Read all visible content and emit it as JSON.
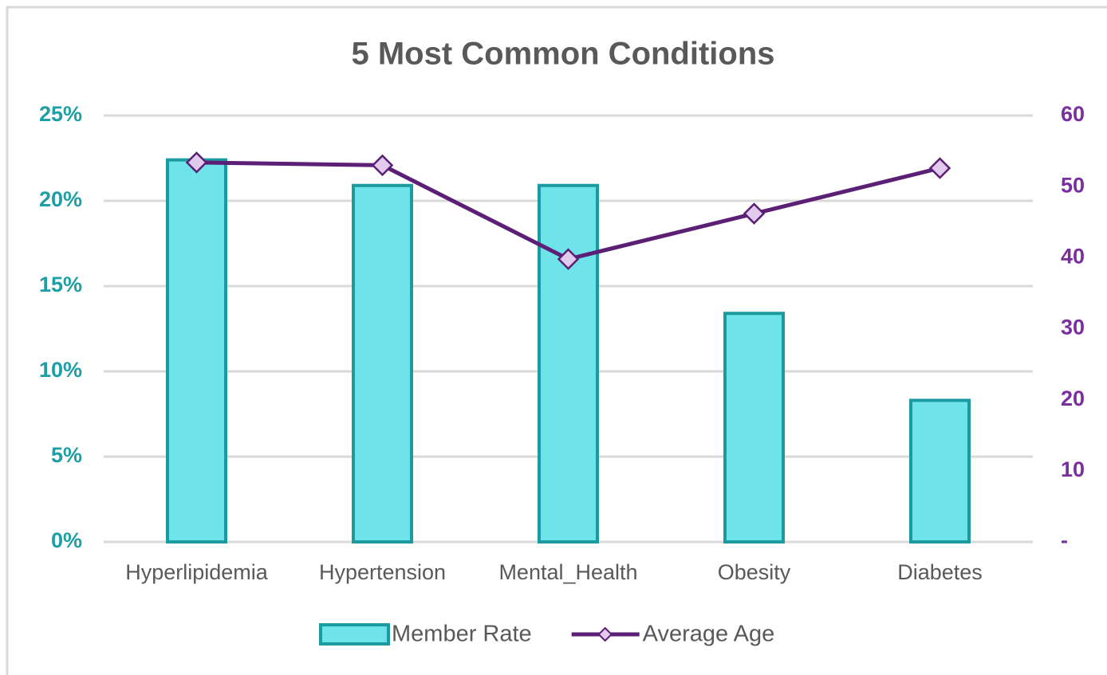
{
  "chart_data": {
    "type": "combo",
    "title": "5 Most Common Conditions",
    "categories": [
      "Hyperlipidemia",
      "Hypertension",
      "Mental_Health",
      "Obesity",
      "Diabetes"
    ],
    "series": [
      {
        "name": "Member Rate",
        "type": "bar",
        "color": "#6fe3ea",
        "edge_color": "#1b9aa0",
        "values": [
          22.4,
          20.9,
          20.9,
          13.4,
          8.3
        ]
      },
      {
        "name": "Average Age",
        "type": "line",
        "axis": "y2",
        "color": "#5b1f75",
        "marker_color": "#e2c9ee",
        "values": [
          53.4,
          53.0,
          39.8,
          46.2,
          52.6
        ]
      }
    ],
    "ylim": [
      0,
      25
    ],
    "yticks": [
      {
        "value": 0,
        "label": "0%"
      },
      {
        "value": 5,
        "label": "5%"
      },
      {
        "value": 10,
        "label": "10%"
      },
      {
        "value": 15,
        "label": "15%"
      },
      {
        "value": 20,
        "label": "20%"
      },
      {
        "value": 25,
        "label": "25%"
      }
    ],
    "y2lim": [
      0,
      60
    ],
    "y2ticks": [
      {
        "value": 0,
        "label": "-"
      },
      10,
      20,
      30,
      40,
      50,
      60
    ],
    "grid": true
  }
}
